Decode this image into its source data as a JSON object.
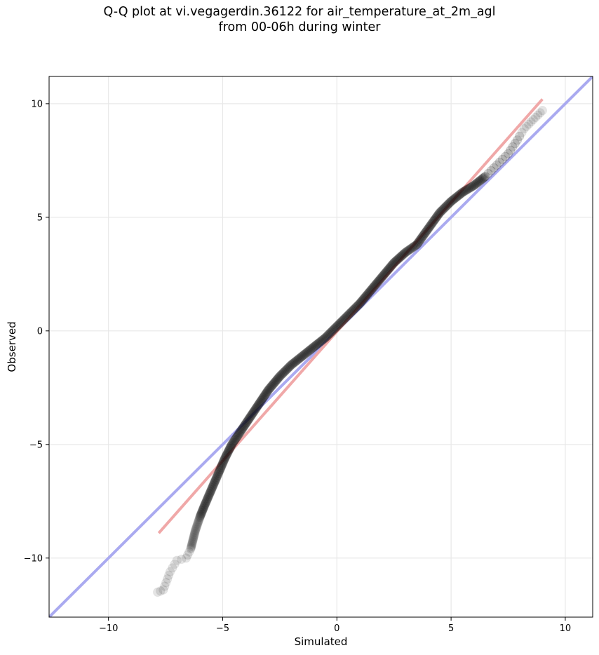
{
  "title_line1": "Q-Q plot at vi.vegagerdin.36122 for air_temperature_at_2m_agl",
  "title_line2": "from 00-06h during winter",
  "chart_data": {
    "type": "scatter",
    "xlabel": "Simulated",
    "ylabel": "Observed",
    "xlim": [
      -12.6,
      11.2
    ],
    "ylim": [
      -12.6,
      11.2
    ],
    "xticks": [
      -10,
      -5,
      0,
      5,
      10
    ],
    "yticks": [
      -10,
      -5,
      0,
      5,
      10
    ],
    "grid": true,
    "quantile_knots": [
      [
        -7.85,
        -11.5
      ],
      [
        -7.6,
        -11.4
      ],
      [
        -7.3,
        -10.6
      ],
      [
        -7.0,
        -10.1
      ],
      [
        -6.6,
        -10.0
      ],
      [
        -6.4,
        -9.6
      ],
      [
        -6.2,
        -8.8
      ],
      [
        -6.0,
        -8.2
      ],
      [
        -5.8,
        -7.7
      ],
      [
        -5.5,
        -7.0
      ],
      [
        -5.2,
        -6.3
      ],
      [
        -4.9,
        -5.6
      ],
      [
        -4.6,
        -5.0
      ],
      [
        -4.2,
        -4.4
      ],
      [
        -3.8,
        -3.8
      ],
      [
        -3.4,
        -3.2
      ],
      [
        -3.0,
        -2.6
      ],
      [
        -2.5,
        -2.0
      ],
      [
        -2.0,
        -1.5
      ],
      [
        -1.5,
        -1.1
      ],
      [
        -1.0,
        -0.7
      ],
      [
        -0.5,
        -0.3
      ],
      [
        0.0,
        0.2
      ],
      [
        0.5,
        0.7
      ],
      [
        1.0,
        1.2
      ],
      [
        1.5,
        1.8
      ],
      [
        2.0,
        2.4
      ],
      [
        2.5,
        3.0
      ],
      [
        3.0,
        3.45
      ],
      [
        3.5,
        3.8
      ],
      [
        4.0,
        4.5
      ],
      [
        4.5,
        5.2
      ],
      [
        5.0,
        5.7
      ],
      [
        5.5,
        6.1
      ],
      [
        6.0,
        6.4
      ],
      [
        6.5,
        6.8
      ],
      [
        7.0,
        7.3
      ],
      [
        7.5,
        7.8
      ],
      [
        7.9,
        8.4
      ],
      [
        8.2,
        8.9
      ],
      [
        8.5,
        9.2
      ],
      [
        8.8,
        9.5
      ],
      [
        9.0,
        9.7
      ]
    ],
    "identity_line": {
      "from": [
        -12.6,
        -12.6
      ],
      "to": [
        11.2,
        11.2
      ],
      "color": "#aaaaf0"
    },
    "fit_line": {
      "from": [
        -7.8,
        -8.9
      ],
      "to": [
        9.0,
        10.2
      ],
      "color": "#f0a8a8"
    },
    "point_color": "#000000"
  }
}
